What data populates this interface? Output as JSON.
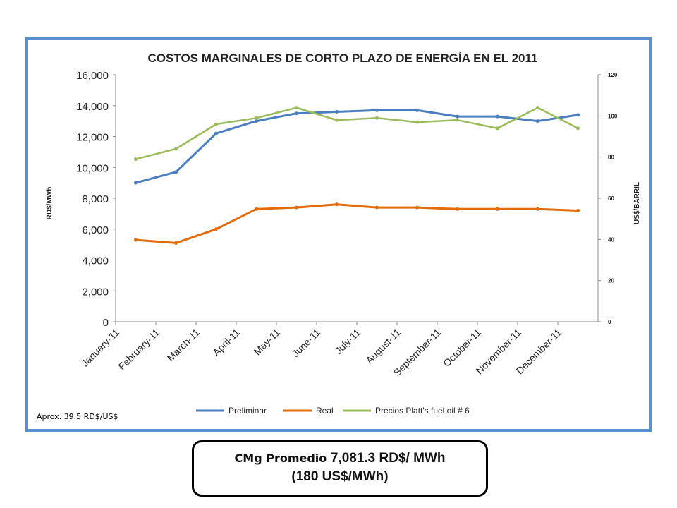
{
  "chart_data": {
    "type": "line",
    "title": "COSTOS MARGINALES DE CORTO PLAZO DE ENERGÍA EN EL  2011",
    "ylabel": "RD$/MWh",
    "y2label": "US$/BARRIL",
    "ylim": [
      0,
      16000
    ],
    "y2lim": [
      0,
      120
    ],
    "yticks": [
      "0",
      "2,000",
      "4,000",
      "6,000",
      "8,000",
      "10,000",
      "12,000",
      "14,000",
      "16,000"
    ],
    "y2ticks": [
      "0",
      "20",
      "40",
      "60",
      "80",
      "100",
      "120"
    ],
    "categories": [
      "January-11",
      "February-11",
      "March-11",
      "April-11",
      "May-11",
      "June-11",
      "July-11",
      "August-11",
      "September-11",
      "October-11",
      "November-11",
      "December-11"
    ],
    "legend_position": "bottom",
    "grid": false,
    "series": [
      {
        "name": "Preliminar",
        "color": "#4a7ebf",
        "axis": "left",
        "values": [
          9000,
          9700,
          12200,
          13000,
          13500,
          13600,
          13700,
          13700,
          13300,
          13300,
          13000,
          13400
        ]
      },
      {
        "name": "Real",
        "color": "#e36c0a",
        "axis": "left",
        "values": [
          5300,
          5100,
          6000,
          7300,
          7400,
          7600,
          7400,
          7400,
          7300,
          7300,
          7300,
          7200
        ]
      },
      {
        "name": "Precios Platt's fuel oil # 6",
        "color": "#9bbb59",
        "axis": "right",
        "values": [
          79,
          84,
          96,
          99,
          104,
          98,
          99,
          97,
          98,
          94,
          104,
          94
        ]
      }
    ]
  },
  "note": "Aprox. 39.5 RD$/US$",
  "summary": {
    "line1_prefix": "CMg Promedio ",
    "line1_value": "7,081.3 RD$/ MWh",
    "line2": "(180 US$/MWh)"
  }
}
